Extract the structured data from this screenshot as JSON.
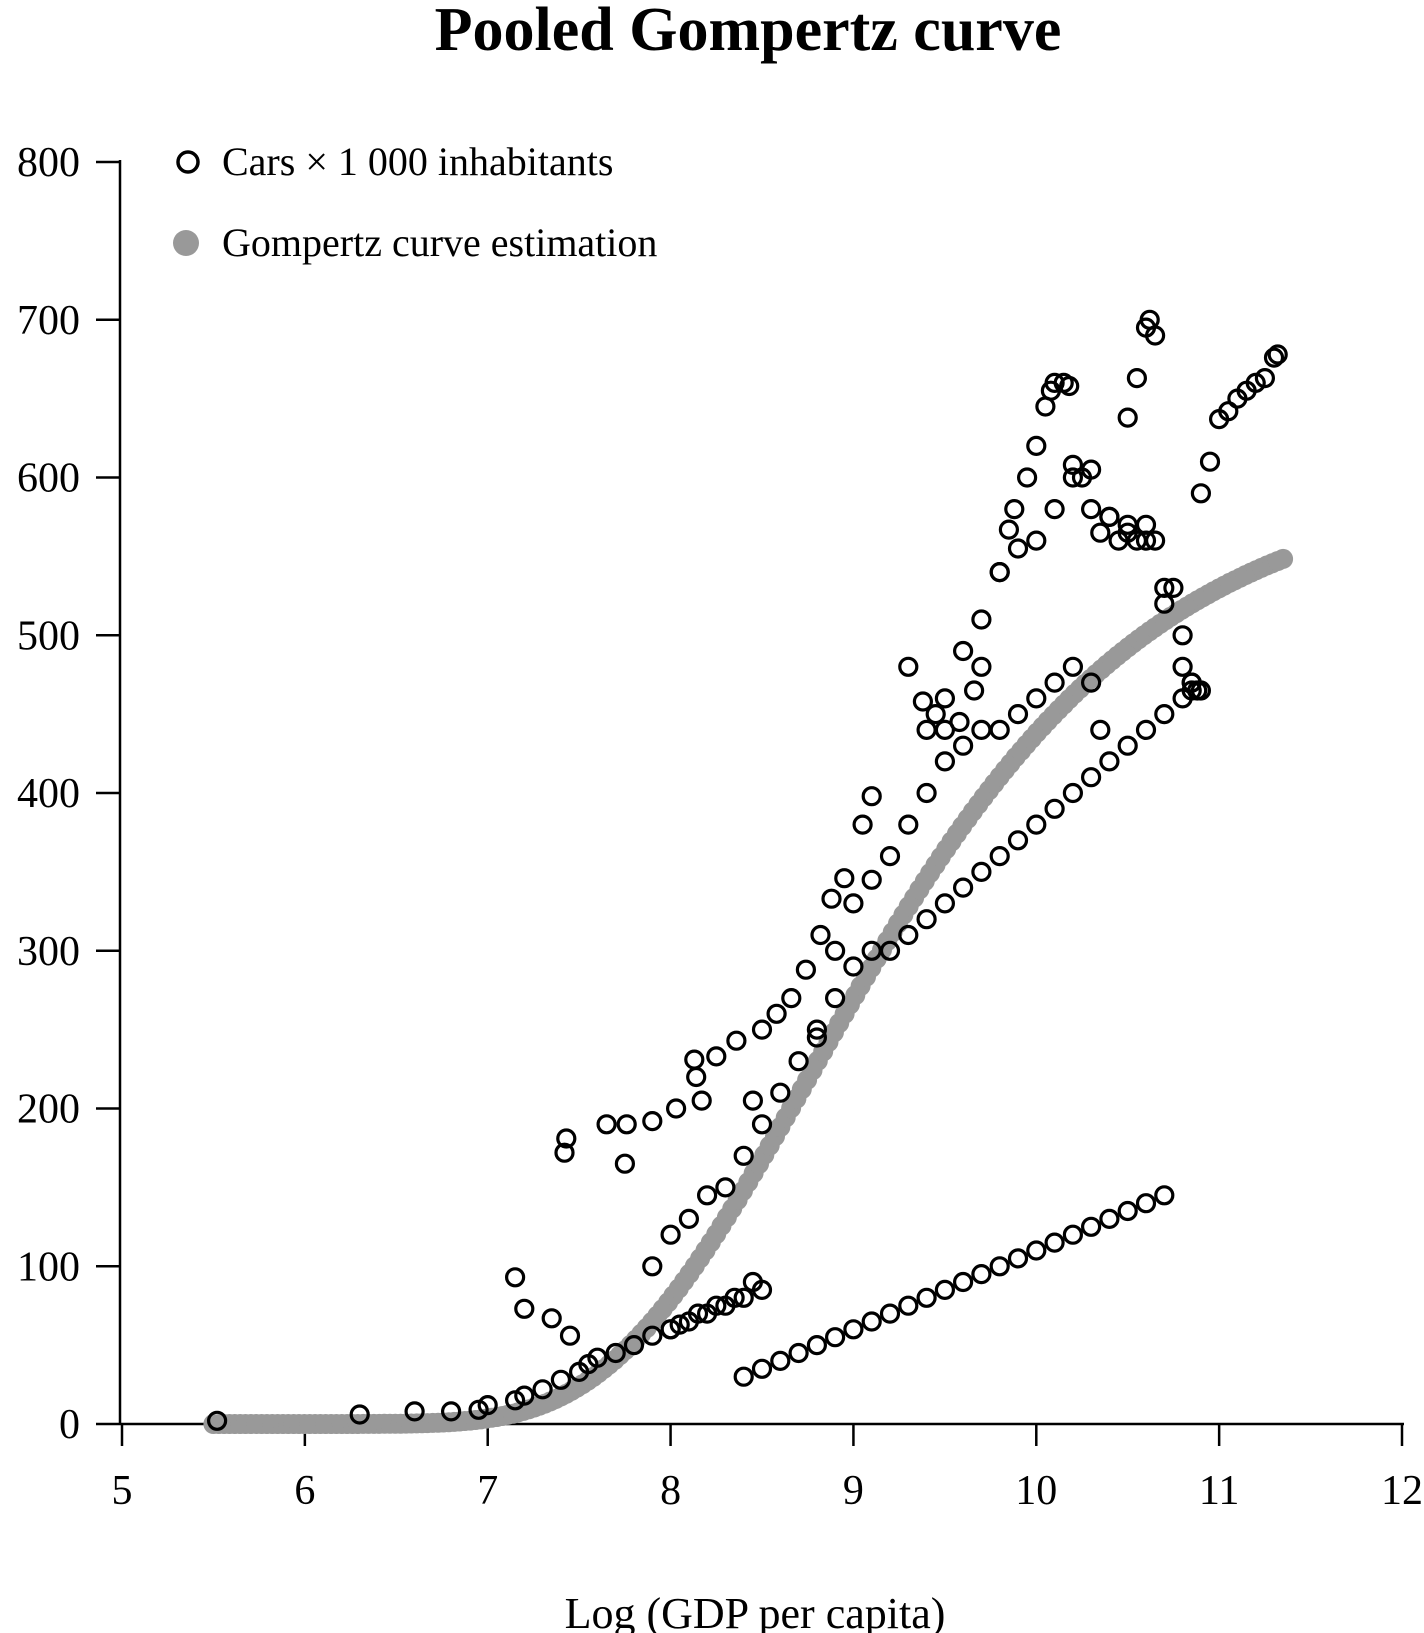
{
  "chart_data": {
    "type": "scatter",
    "title": "Pooled Gompertz curve",
    "xlabel": "Log (GDP per capita)",
    "ylabel": "",
    "xlim": [
      5,
      12
    ],
    "ylim": [
      0,
      800
    ],
    "x_ticks": [
      "5",
      "6",
      "7",
      "8",
      "9",
      "10",
      "11",
      "12"
    ],
    "y_ticks": [
      "0",
      "100",
      "200",
      "300",
      "400",
      "500",
      "600",
      "700",
      "800"
    ],
    "grid": false,
    "legend_position": "top-left",
    "colors": {
      "observed": "#000000",
      "fitted": "#999999"
    },
    "series": [
      {
        "name": "Cars × 1 000 inhabitants",
        "marker": "open-circle",
        "x": [
          5.52,
          6.3,
          6.6,
          6.8,
          6.95,
          7.0,
          7.15,
          7.2,
          7.3,
          7.4,
          7.5,
          7.55,
          7.6,
          7.7,
          7.8,
          7.9,
          8.0,
          8.1,
          8.2,
          8.3,
          8.4,
          8.5,
          7.42,
          7.43,
          7.65,
          7.75,
          7.76,
          7.9,
          8.03,
          8.13,
          8.14,
          8.17,
          8.25,
          8.36,
          8.45,
          8.5,
          8.58,
          8.66,
          8.74,
          8.82,
          8.88,
          8.95,
          9.05,
          9.1,
          9.3,
          9.38,
          9.45,
          9.5,
          9.58,
          9.66,
          9.7,
          9.8,
          9.85,
          9.88,
          9.95,
          10.0,
          10.05,
          10.08,
          10.1,
          10.15,
          10.18,
          10.5,
          10.55,
          10.6,
          10.62,
          10.65,
          10.9,
          10.95,
          11.0,
          11.05,
          11.1,
          11.15,
          11.2,
          11.25,
          11.3,
          11.32,
          10.2,
          10.25,
          10.3,
          10.35,
          10.4,
          10.45,
          10.5,
          10.55,
          10.6,
          10.65,
          10.7,
          10.75,
          10.8,
          10.85,
          10.9,
          9.4,
          9.5,
          9.6,
          9.7,
          9.8,
          9.9,
          10.0,
          10.1,
          10.2,
          10.3,
          10.4,
          10.5,
          10.6,
          10.7,
          10.8,
          10.85,
          10.88,
          8.8,
          8.9,
          9.0,
          9.1,
          9.2,
          9.3,
          9.4,
          9.5,
          9.6,
          9.7,
          9.8,
          9.9,
          10.0,
          10.1,
          10.2,
          10.3,
          10.35,
          7.9,
          8.0,
          8.1,
          8.2,
          8.3,
          8.4,
          8.5,
          8.6,
          8.7,
          8.8,
          8.9,
          9.0,
          9.1,
          9.2,
          9.3,
          9.4,
          9.5,
          9.6,
          9.7,
          9.8,
          9.9,
          10.0,
          10.1,
          10.2,
          10.3,
          10.4,
          10.5,
          10.6,
          10.7,
          10.8,
          10.85,
          8.4,
          8.5,
          8.6,
          8.7,
          8.8,
          8.9,
          9.0,
          9.1,
          9.2,
          9.3,
          9.4,
          9.5,
          9.6,
          9.7,
          9.8,
          9.9,
          10.0,
          10.1,
          10.2,
          10.3,
          10.4,
          10.5,
          10.6,
          10.7,
          7.15,
          7.2,
          7.35,
          7.45,
          8.0,
          8.05,
          8.15,
          8.25,
          8.35,
          8.45
        ],
        "y": [
          2,
          6,
          8,
          8,
          9,
          12,
          15,
          18,
          22,
          28,
          33,
          38,
          42,
          45,
          50,
          56,
          60,
          65,
          70,
          75,
          80,
          85,
          172,
          181,
          190,
          165,
          190,
          192,
          200,
          231,
          220,
          205,
          233,
          243,
          205,
          250,
          260,
          270,
          288,
          310,
          333,
          346,
          380,
          398,
          480,
          458,
          450,
          440,
          445,
          465,
          480,
          540,
          567,
          580,
          600,
          620,
          645,
          655,
          660,
          660,
          658,
          638,
          663,
          695,
          700,
          690,
          590,
          610,
          637,
          642,
          650,
          655,
          660,
          663,
          676,
          678,
          608,
          600,
          580,
          565,
          575,
          560,
          565,
          560,
          570,
          560,
          530,
          530,
          480,
          470,
          465,
          440,
          460,
          490,
          510,
          540,
          555,
          560,
          580,
          600,
          605,
          575,
          570,
          560,
          520,
          500,
          470,
          465,
          245,
          300,
          330,
          345,
          360,
          380,
          400,
          420,
          430,
          440,
          440,
          450,
          460,
          470,
          480,
          470,
          440,
          100,
          120,
          130,
          145,
          150,
          170,
          190,
          210,
          230,
          250,
          270,
          290,
          300,
          300,
          310,
          320,
          330,
          340,
          350,
          360,
          370,
          380,
          390,
          400,
          410,
          420,
          430,
          440,
          450,
          460,
          465,
          30,
          35,
          40,
          45,
          50,
          55,
          60,
          65,
          70,
          75,
          80,
          85,
          90,
          95,
          100,
          105,
          110,
          115,
          120,
          125,
          130,
          135,
          140,
          145,
          93,
          73,
          67,
          56,
          60,
          63,
          70,
          75,
          80,
          90
        ]
      },
      {
        "name": "Gompertz curve estimation",
        "marker": "filled-circle",
        "a": 600,
        "b": 3450,
        "c": 0.93,
        "x_range": [
          5.5,
          11.35
        ]
      }
    ]
  }
}
